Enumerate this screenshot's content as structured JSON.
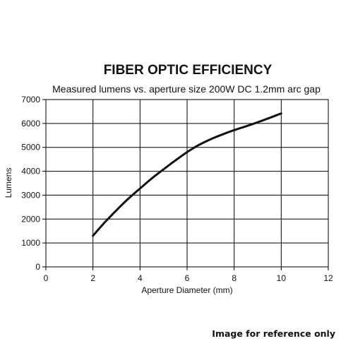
{
  "chart_data": {
    "type": "line",
    "title": "FIBER OPTIC EFFICIENCY",
    "subtitle": "Measured lumens vs. aperture size 200W DC 1.2mm arc gap",
    "xlabel": "Aperture Diameter (mm)",
    "ylabel": "Lumens",
    "xlim": [
      0,
      12
    ],
    "ylim": [
      0,
      7000
    ],
    "xticks": [
      0,
      2,
      4,
      6,
      8,
      10,
      12
    ],
    "yticks": [
      0,
      1000,
      2000,
      3000,
      4000,
      5000,
      6000,
      7000
    ],
    "xtick_labels": [
      "0",
      "2",
      "4",
      "6",
      "8",
      "10",
      "12"
    ],
    "ytick_labels": [
      "0",
      "1000",
      "2000",
      "3000",
      "4000",
      "5000",
      "6000",
      "7000"
    ],
    "grid": true,
    "legend": "none",
    "series": [
      {
        "x": [
          2,
          2.5,
          3,
          3.5,
          4,
          4.5,
          5,
          5.5,
          6,
          6.5,
          7,
          7.5,
          8,
          8.5,
          9,
          9.5,
          10
        ],
        "y": [
          1300,
          1860,
          2370,
          2850,
          3280,
          3700,
          4080,
          4450,
          4800,
          5100,
          5340,
          5540,
          5720,
          5880,
          6050,
          6230,
          6420
        ],
        "color": "#111111"
      }
    ]
  },
  "footer": {
    "note": "Image for reference only"
  }
}
